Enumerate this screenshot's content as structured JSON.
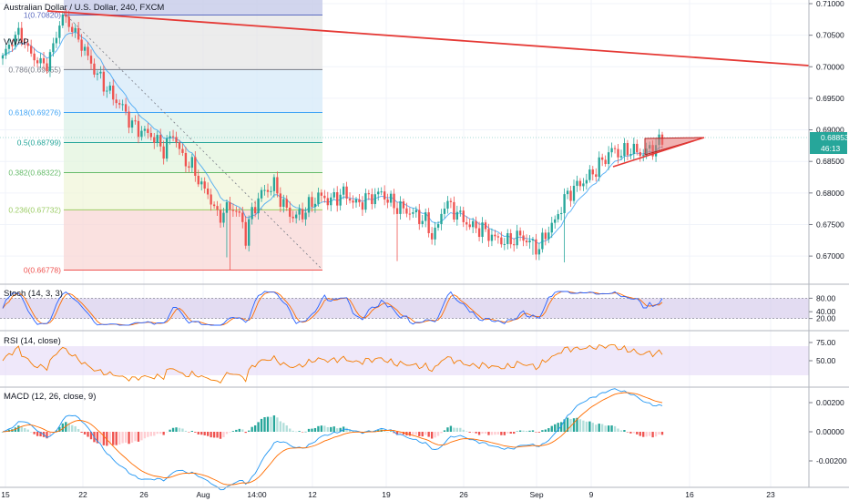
{
  "header": {
    "symbol_title": "Australian Dollar / U.S. Dollar, 240, FXCM",
    "vwap_label": "VWAP"
  },
  "colors": {
    "up": "#26a69a",
    "down": "#ef5350",
    "trendline": "#e53935",
    "stoch_k": "#2962ff",
    "stoch_d": "#ff6d00",
    "rsi": "#f57c00",
    "macd": "#2196f3",
    "signal": "#ff6d00",
    "price_tag": "#26a69a",
    "osc_band": "#d1c4e9"
  },
  "price_axis": {
    "ticks": [
      "0.71000",
      "0.70500",
      "0.70000",
      "0.69500",
      "0.69000",
      "0.68500",
      "0.68000",
      "0.67500",
      "0.67000"
    ],
    "current_price": "0.68853",
    "countdown": "46:13"
  },
  "fib_levels": [
    {
      "label": "1(0.70820)",
      "value": 0.7082,
      "color": "#5c6bc0",
      "fill": "#c5cae9"
    },
    {
      "label": "0.786(0.69955)",
      "value": 0.69955,
      "color": "#787b86",
      "fill": "#e6e6e6"
    },
    {
      "label": "0.618(0.69276)",
      "value": 0.69276,
      "color": "#42a5f5",
      "fill": "#d6e9f8"
    },
    {
      "label": "0.5(0.68799)",
      "value": 0.68799,
      "color": "#26a69a",
      "fill": "#dcf2e8"
    },
    {
      "label": "0.382(0.68322)",
      "value": 0.68322,
      "color": "#66bb6a",
      "fill": "#e3f4dd"
    },
    {
      "label": "0.236(0.67732)",
      "value": 0.67732,
      "color": "#9ccc65",
      "fill": "#f0f6d9"
    },
    {
      "label": "0(0.66778)",
      "value": 0.66778,
      "color": "#ef5350",
      "fill": "#f8d7d6"
    }
  ],
  "stoch": {
    "title": "Stoch (14, 3, 3)",
    "ticks": [
      "80.00",
      "40.00",
      "20.00"
    ],
    "upper": 80,
    "lower": 20
  },
  "rsi": {
    "title": "RSI (14, close)",
    "ticks": [
      "75.00",
      "50.00"
    ],
    "upper": 70,
    "lower": 30
  },
  "macd": {
    "title": "MACD (12, 26, close, 9)",
    "ticks": [
      "0.00200",
      "0.00000",
      "-0.00200"
    ]
  },
  "time_axis": {
    "labels": [
      "15",
      "22",
      "26",
      "Aug",
      "14:00",
      "12",
      "19",
      "26",
      "Sep",
      "9",
      "16",
      "23"
    ]
  },
  "chart_data": {
    "type": "candlestick",
    "symbol": "Australian Dollar / U.S. Dollar",
    "interval": "240",
    "source": "FXCM",
    "ylim": [
      0.666,
      0.711
    ],
    "close_anchors": [
      [
        0,
        0.7018
      ],
      [
        5,
        0.7055
      ],
      [
        10,
        0.7012
      ],
      [
        14,
        0.7002
      ],
      [
        19,
        0.7082
      ],
      [
        24,
        0.7045
      ],
      [
        29,
        0.6995
      ],
      [
        34,
        0.6958
      ],
      [
        38,
        0.6935
      ],
      [
        41,
        0.6908
      ],
      [
        44,
        0.6898
      ],
      [
        47,
        0.6892
      ],
      [
        51,
        0.6868
      ],
      [
        54,
        0.6895
      ],
      [
        57,
        0.6855
      ],
      [
        60,
        0.6842
      ],
      [
        63,
        0.6812
      ],
      [
        66,
        0.679
      ],
      [
        68,
        0.6762
      ],
      [
        72,
        0.6778
      ],
      [
        74,
        0.6772
      ],
      [
        76,
        0.6752
      ],
      [
        77,
        0.673
      ],
      [
        79,
        0.677
      ],
      [
        82,
        0.68
      ],
      [
        86,
        0.6812
      ],
      [
        89,
        0.678
      ],
      [
        92,
        0.6762
      ],
      [
        95,
        0.6768
      ],
      [
        100,
        0.6795
      ],
      [
        104,
        0.6788
      ],
      [
        108,
        0.68
      ],
      [
        112,
        0.6782
      ],
      [
        116,
        0.6792
      ],
      [
        120,
        0.68
      ],
      [
        124,
        0.678
      ],
      [
        128,
        0.6772
      ],
      [
        132,
        0.6762
      ],
      [
        134,
        0.6755
      ],
      [
        136,
        0.6732
      ],
      [
        138,
        0.6748
      ],
      [
        140,
        0.6785
      ],
      [
        144,
        0.6768
      ],
      [
        148,
        0.6748
      ],
      [
        152,
        0.6742
      ],
      [
        156,
        0.6728
      ],
      [
        160,
        0.6722
      ],
      [
        164,
        0.6732
      ],
      [
        168,
        0.6718
      ],
      [
        170,
        0.6712
      ],
      [
        172,
        0.6735
      ],
      [
        175,
        0.6755
      ],
      [
        178,
        0.679
      ],
      [
        181,
        0.6808
      ],
      [
        184,
        0.6818
      ],
      [
        187,
        0.6832
      ],
      [
        190,
        0.685
      ],
      [
        193,
        0.6868
      ],
      [
        196,
        0.6862
      ],
      [
        199,
        0.687
      ],
      [
        202,
        0.6862
      ],
      [
        205,
        0.6868
      ],
      [
        207,
        0.6875
      ],
      [
        209,
        0.6885
      ]
    ],
    "notable_lows": [
      [
        71,
        0.6698
      ],
      [
        72,
        0.66778
      ],
      [
        125,
        0.6692
      ],
      [
        168,
        0.6702
      ],
      [
        178,
        0.669
      ]
    ],
    "trendline": {
      "from": [
        "Jul 19",
        0.7085
      ],
      "to": [
        "Sep 26",
        0.7003
      ]
    },
    "triangle": {
      "apex_price": 0.6885,
      "base_low": 0.6842
    },
    "current_price": 0.68853
  }
}
